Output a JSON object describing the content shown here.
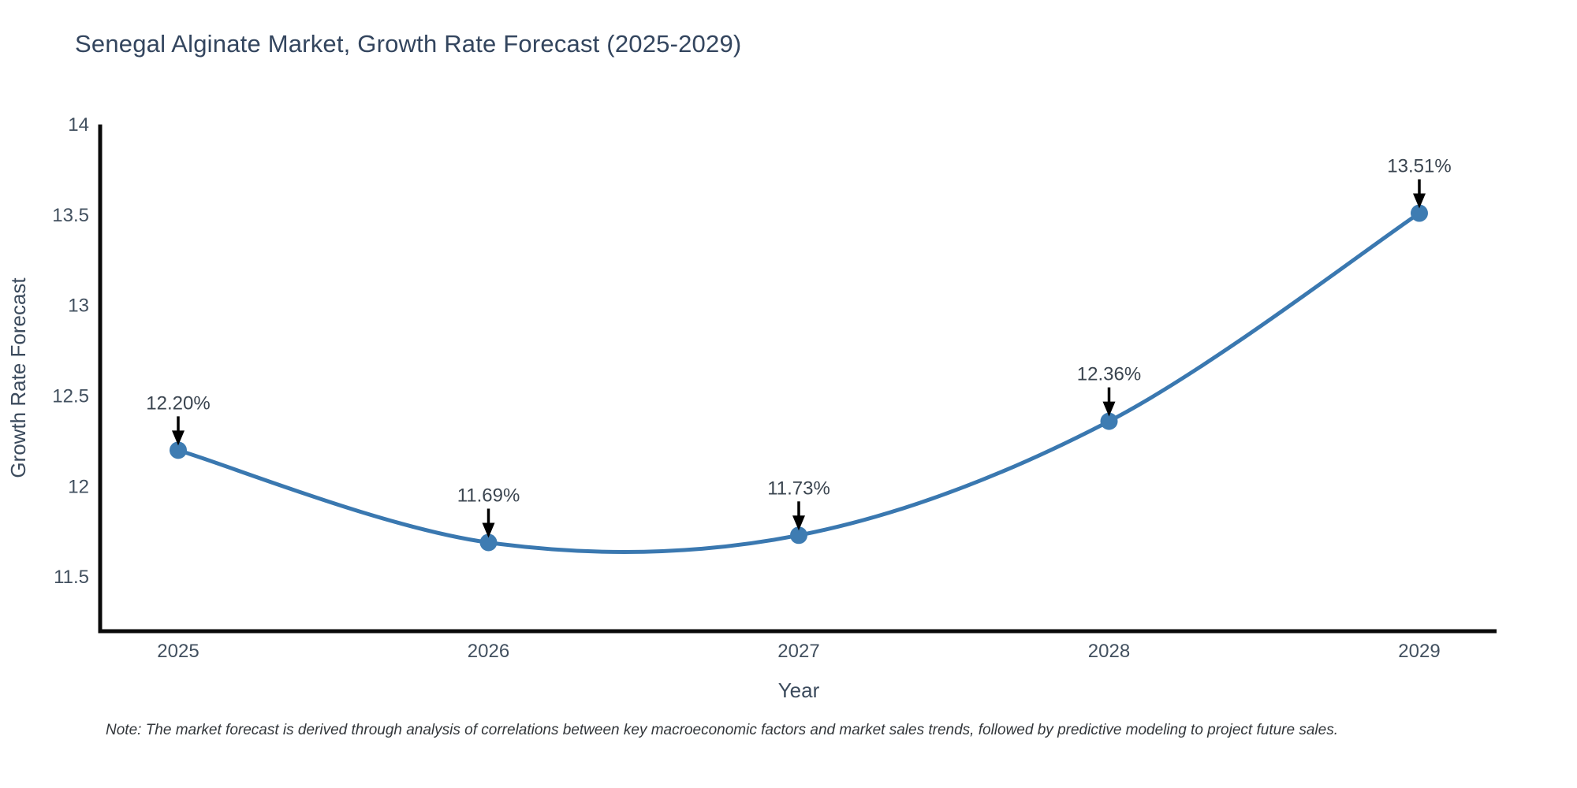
{
  "note": "Note: The market forecast is derived through analysis of correlations between key macroeconomic factors and market sales trends, followed by predictive modeling to project future sales.",
  "chart_data": {
    "type": "line",
    "title": "Senegal Alginate Market, Growth Rate Forecast (2025-2029)",
    "xlabel": "Year",
    "ylabel": "Growth Rate Forecast",
    "categories": [
      "2025",
      "2026",
      "2027",
      "2028",
      "2029"
    ],
    "series": [
      {
        "name": "Growth Rate Forecast",
        "values": [
          12.2,
          11.69,
          11.73,
          12.36,
          13.51
        ],
        "point_labels": [
          "12.20%",
          "11.69%",
          "11.73%",
          "12.36%",
          "13.51%"
        ]
      }
    ],
    "line_shape": "spline",
    "markers": true,
    "grid": false,
    "legend_position": "none",
    "ylim": [
      11.2,
      14
    ],
    "y_ticks": [
      14,
      13.5,
      13,
      12.5,
      12,
      11.5
    ],
    "y_tick_labels": [
      "14",
      "13.5",
      "13",
      "12.5",
      "12",
      "11.5"
    ],
    "annotations_arrow": "down",
    "colors": {
      "line": "#3a78b0",
      "marker": "#3e7cb2",
      "arrow": "#000000",
      "spine": "#0a0a0a",
      "title_text": "#33455e",
      "axis_title_text": "#3b4a5c",
      "tick_text": "#42505f",
      "annotation_text": "#3b4550",
      "note_text": "#33373b"
    }
  }
}
